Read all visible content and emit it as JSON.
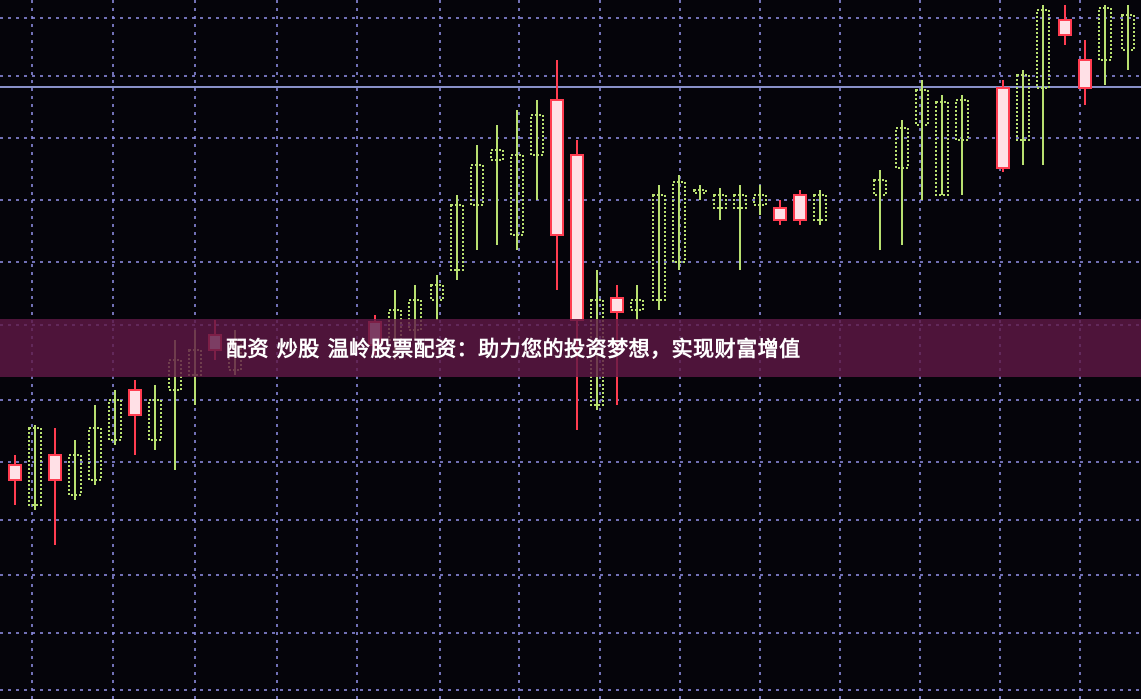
{
  "banner": {
    "title": "配资 炒股 温岭股票配资：助力您的投资梦想，实现财富增值"
  },
  "colors": {
    "background": "#05040a",
    "grid": "#8c8ce0",
    "up_candle": "#b8e070",
    "down_candle": "#ff3c50",
    "banner": "#5f1946"
  }
}
